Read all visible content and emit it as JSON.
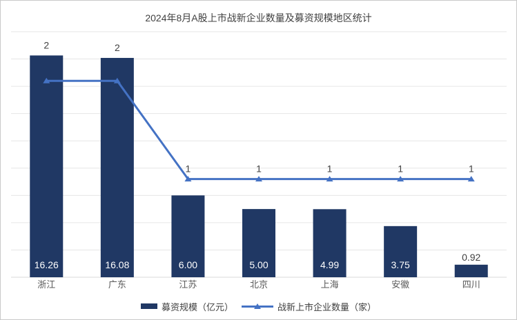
{
  "title": "2024年8月A股上市战新企业数量及募资规模地区统计",
  "legend": {
    "items": [
      {
        "label": "募资规模（亿元）",
        "swatch": "bar-swatch"
      },
      {
        "label": "战新上市企业数量（家）",
        "swatch": "line-swatch"
      }
    ]
  },
  "colors": {
    "background": "#ffffff",
    "border": "#c9c9c9",
    "bar": "#203864",
    "line": "#4472C4",
    "gridline": "#e6e6e6",
    "axis_line": "#d9d9d9",
    "title_text": "#404040",
    "axis_label_text": "#595959",
    "data_label_text": "#404040",
    "bar_inner_label_text": "#ffffff"
  },
  "chart_data": {
    "type": "combo",
    "title": "2024年8月A股上市战新企业数量及募资规模地区统计",
    "categories": [
      "浙江",
      "广东",
      "江苏",
      "北京",
      "上海",
      "安徽",
      "四川"
    ],
    "series": [
      {
        "name": "募资规模（亿元）",
        "type": "bar",
        "axis": "primary",
        "values": [
          16.26,
          16.08,
          6.0,
          5.0,
          4.99,
          3.75,
          0.92
        ],
        "data_labels": [
          "16.26",
          "16.08",
          "6.00",
          "5.00",
          "4.99",
          "3.75",
          "0.92"
        ]
      },
      {
        "name": "战新上市企业数量（家）",
        "type": "line",
        "axis": "secondary",
        "values": [
          2,
          2,
          1,
          1,
          1,
          1,
          1
        ],
        "data_labels": [
          "2",
          "2",
          "1",
          "1",
          "1",
          "1",
          "1"
        ]
      }
    ],
    "primary_axis": {
      "min": 0,
      "max": 18,
      "tick_interval": 2,
      "tick_labels_visible": false
    },
    "secondary_axis": {
      "min": 0,
      "max": 2.5,
      "tick_labels_visible": false
    },
    "grid": true,
    "legend_position": "bottom"
  }
}
